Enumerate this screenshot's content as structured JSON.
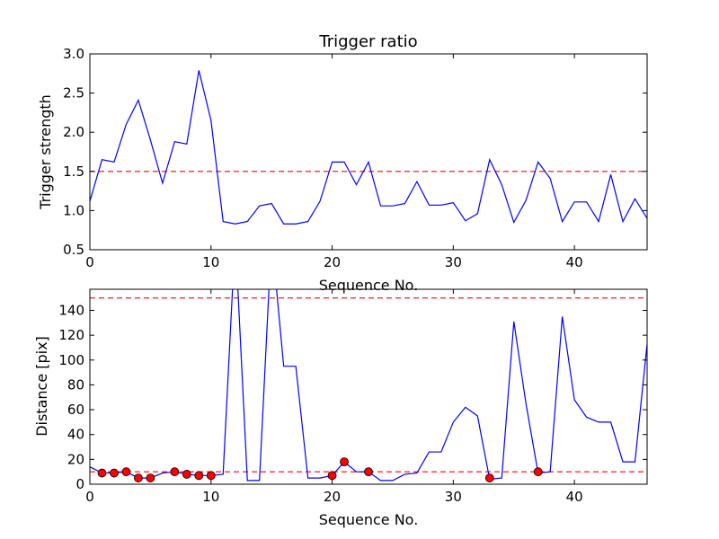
{
  "figure": {
    "title": "Trigger ratio"
  },
  "chart_data": [
    {
      "type": "line",
      "title": "Trigger ratio",
      "xlabel": "Sequence No.",
      "ylabel": "Trigger strength",
      "xlim": [
        0,
        46
      ],
      "ylim": [
        0.5,
        3.0
      ],
      "xticks": [
        0,
        10,
        20,
        30,
        40
      ],
      "yticks": [
        0.5,
        1.0,
        1.5,
        2.0,
        2.5,
        3.0
      ],
      "ytick_labels": [
        "0.5",
        "1.0",
        "1.5",
        "2.0",
        "2.5",
        "3.0"
      ],
      "grid": false,
      "series": [
        {
          "color": "#0000ff",
          "style": "solid",
          "x": [
            0,
            1,
            2,
            3,
            4,
            5,
            6,
            7,
            8,
            9,
            10,
            11,
            12,
            13,
            14,
            15,
            16,
            17,
            18,
            19,
            20,
            21,
            22,
            23,
            24,
            25,
            26,
            27,
            28,
            29,
            30,
            31,
            32,
            33,
            34,
            35,
            36,
            37,
            38,
            39,
            40,
            41,
            42,
            43,
            44,
            45,
            46
          ],
          "values": [
            1.12,
            1.65,
            1.62,
            2.1,
            2.41,
            1.9,
            1.35,
            1.88,
            1.85,
            2.79,
            2.15,
            0.86,
            0.83,
            0.86,
            1.06,
            1.09,
            0.83,
            0.83,
            0.86,
            1.12,
            1.62,
            1.62,
            1.33,
            1.62,
            1.06,
            1.06,
            1.09,
            1.37,
            1.07,
            1.07,
            1.1,
            0.87,
            0.96,
            1.65,
            1.33,
            0.85,
            1.13,
            1.62,
            1.41,
            0.86,
            1.11,
            1.11,
            0.86,
            1.46,
            0.86,
            1.15,
            0.9
          ]
        }
      ],
      "reference_lines": [
        {
          "y": 1.5,
          "color": "#ff0000",
          "style": "dashed"
        }
      ]
    },
    {
      "type": "line",
      "title": "",
      "xlabel": "Sequence No.",
      "ylabel": "Distance [pix]",
      "xlim": [
        0,
        46
      ],
      "ylim": [
        0,
        157
      ],
      "xticks": [
        0,
        10,
        20,
        30,
        40
      ],
      "yticks": [
        0,
        20,
        40,
        60,
        80,
        100,
        120,
        140
      ],
      "grid": false,
      "series": [
        {
          "color": "#0000ff",
          "style": "solid",
          "x": [
            0,
            1,
            2,
            3,
            4,
            5,
            6,
            7,
            8,
            9,
            10,
            11,
            12,
            13,
            14,
            15,
            16,
            17,
            18,
            19,
            20,
            21,
            22,
            23,
            24,
            25,
            26,
            27,
            28,
            29,
            30,
            31,
            32,
            33,
            34,
            35,
            36,
            37,
            38,
            39,
            40,
            41,
            42,
            43,
            44,
            45,
            46
          ],
          "values": [
            14,
            9,
            9,
            10,
            5,
            5,
            9,
            10,
            8,
            7,
            7,
            8,
            200,
            3,
            3,
            200,
            95,
            95,
            5,
            5,
            7,
            18,
            10,
            10,
            3,
            3,
            8,
            9,
            26,
            26,
            50,
            62,
            55,
            4,
            5,
            131,
            65,
            9,
            10,
            135,
            68,
            54,
            50,
            50,
            18,
            18,
            113
          ]
        }
      ],
      "markers": {
        "color": "#ff0000",
        "edge_color": "#000000",
        "x": [
          1,
          2,
          3,
          4,
          5,
          7,
          8,
          9,
          10,
          20,
          21,
          23,
          33,
          37
        ],
        "values": [
          9,
          9,
          10,
          5,
          5,
          10,
          8,
          7,
          7,
          7,
          18,
          10,
          5,
          10
        ]
      },
      "reference_lines": [
        {
          "y": 150,
          "color": "#ff0000",
          "style": "dashed"
        },
        {
          "y": 10,
          "color": "#ff0000",
          "style": "dashed"
        }
      ]
    }
  ]
}
